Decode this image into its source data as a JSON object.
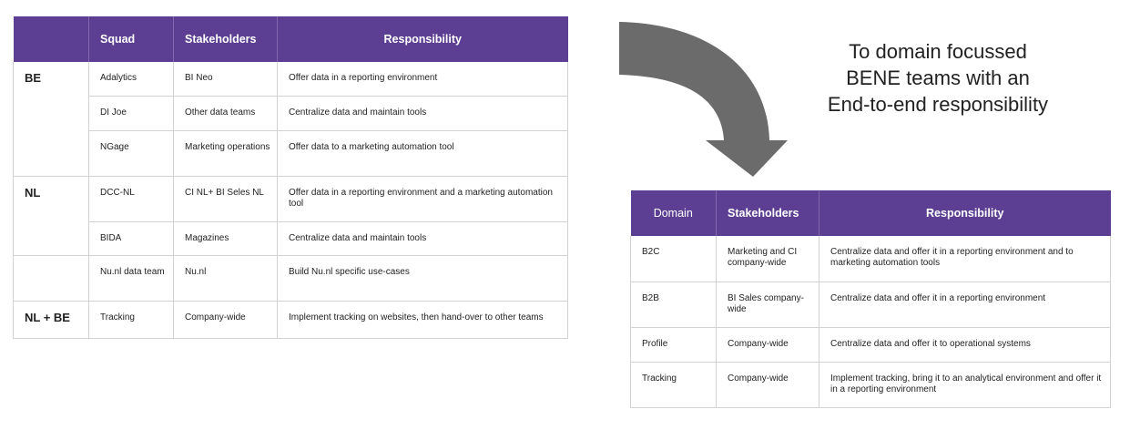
{
  "left_table": {
    "headers": [
      "",
      "Squad",
      "Stakeholders",
      "Responsibility"
    ],
    "groups": [
      {
        "label": "BE",
        "rows": [
          {
            "squad": "Adalytics",
            "stakeholders": "BI Neo",
            "responsibility": "Offer data in a reporting environment"
          },
          {
            "squad": "DI Joe",
            "stakeholders": "Other data teams",
            "responsibility": "Centralize data and maintain tools"
          },
          {
            "squad": "NGage",
            "stakeholders": "Marketing operations",
            "responsibility": "Offer data to a marketing automation tool"
          }
        ]
      },
      {
        "label": "NL",
        "rows": [
          {
            "squad": "DCC-NL",
            "stakeholders": "CI NL+ BI Seles NL",
            "responsibility": "Offer data in a reporting environment and a marketing automation tool"
          },
          {
            "squad": "BIDA",
            "stakeholders": "Magazines",
            "responsibility": "Centralize data and maintain tools"
          }
        ]
      },
      {
        "label": "",
        "rows": [
          {
            "squad": "Nu.nl data team",
            "stakeholders": "Nu.nl",
            "responsibility": "Build Nu.nl specific use-cases"
          }
        ]
      },
      {
        "label": "NL + BE",
        "rows": [
          {
            "squad": "Tracking",
            "stakeholders": "Company-wide",
            "responsibility": "Implement tracking on websites, then hand-over to other teams"
          }
        ]
      }
    ]
  },
  "headline": "To domain focussed BENE teams with an End-to-end responsibility",
  "right_table": {
    "headers": [
      "Domain",
      "Stakeholders",
      "Responsibility"
    ],
    "rows": [
      {
        "domain": "B2C",
        "stakeholders": "Marketing and CI company-wide",
        "responsibility": "Centralize data and offer it in a reporting environment and to marketing automation tools"
      },
      {
        "domain": "B2B",
        "stakeholders": "BI Sales company-wide",
        "responsibility": "Centralize data and offer it in a reporting environment"
      },
      {
        "domain": "Profile",
        "stakeholders": "Company-wide",
        "responsibility": "Centralize data and offer it to operational systems"
      },
      {
        "domain": "Tracking",
        "stakeholders": "Company-wide",
        "responsibility": "Implement tracking, bring it to an analytical environment and offer it in a reporting environment"
      }
    ]
  },
  "colors": {
    "header_purple": "#5c3f93",
    "arrow_gray": "#6b6b6b",
    "border": "#d2d2d2"
  },
  "icons": {
    "arrow": "curved-down-arrow-icon"
  }
}
